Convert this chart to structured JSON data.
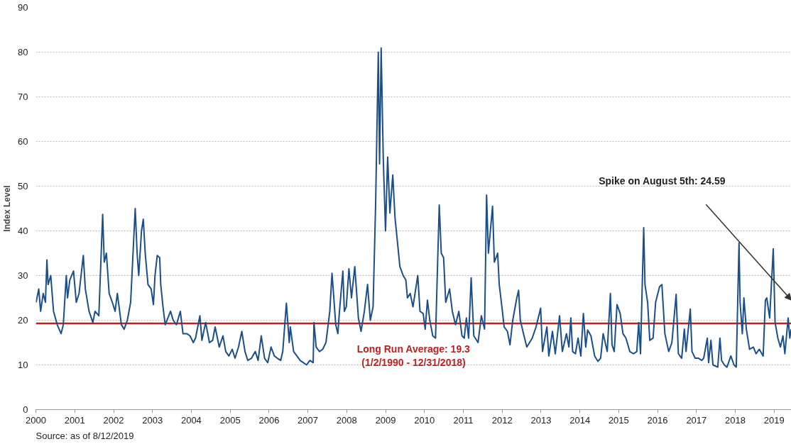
{
  "chart_data": {
    "type": "line",
    "ylabel": "Index Level",
    "xlim": [
      "2000-01-01",
      "2019-06-12"
    ],
    "ylim": [
      0,
      90
    ],
    "xticks": [
      "2000",
      "2001",
      "2002",
      "2003",
      "2004",
      "2005",
      "2006",
      "2007",
      "2008",
      "2009",
      "2010",
      "2011",
      "2012",
      "2013",
      "2014",
      "2015",
      "2016",
      "2017",
      "2018",
      "2019"
    ],
    "yticks": [
      0,
      10,
      20,
      30,
      40,
      50,
      60,
      70,
      80,
      90
    ],
    "grid": "y",
    "marker": "none",
    "line_style": "solid",
    "ref_lines": [
      {
        "axis": "y",
        "value": 19.3,
        "label": "Long Run Average: 19.3\n(1/2/1990 - 12/31/2018)",
        "color": "#c0201f"
      }
    ],
    "annotations": [
      "Spike on August 5th: 24.59",
      "Source: as of 8/12/2019"
    ],
    "series": [
      {
        "color": "#1b4f8a",
        "x": [
          "2000-01-03",
          "2000-01-28",
          "2000-02-15",
          "2000-03-10",
          "2000-03-31",
          "2000-04-14",
          "2000-04-25",
          "2000-05-20",
          "2000-06-15",
          "2000-07-20",
          "2000-08-25",
          "2000-09-15",
          "2000-10-13",
          "2000-10-25",
          "2000-11-15",
          "2000-12-20",
          "2001-01-15",
          "2001-02-10",
          "2001-03-22",
          "2001-04-10",
          "2001-05-15",
          "2001-06-20",
          "2001-07-10",
          "2001-08-15",
          "2001-09-20",
          "2001-10-05",
          "2001-10-25",
          "2001-11-20",
          "2001-12-20",
          "2002-01-15",
          "2002-02-05",
          "2002-03-15",
          "2002-04-10",
          "2002-05-10",
          "2002-06-10",
          "2002-07-23",
          "2002-08-10",
          "2002-08-25",
          "2002-09-20",
          "2002-10-07",
          "2002-10-25",
          "2002-11-20",
          "2002-12-20",
          "2003-01-10",
          "2003-01-25",
          "2003-02-15",
          "2003-03-10",
          "2003-03-20",
          "2003-04-10",
          "2003-05-01",
          "2003-06-20",
          "2003-07-15",
          "2003-08-15",
          "2003-09-20",
          "2003-10-15",
          "2003-11-20",
          "2003-12-20",
          "2004-01-20",
          "2004-02-10",
          "2004-03-22",
          "2004-04-10",
          "2004-05-15",
          "2004-06-20",
          "2004-07-20",
          "2004-08-12",
          "2004-09-20",
          "2004-10-25",
          "2004-11-20",
          "2004-12-20",
          "2005-01-20",
          "2005-02-15",
          "2005-03-20",
          "2005-04-20",
          "2005-05-20",
          "2005-06-15",
          "2005-07-20",
          "2005-08-25",
          "2005-09-20",
          "2005-10-20",
          "2005-11-20",
          "2005-12-20",
          "2006-01-20",
          "2006-02-20",
          "2006-03-20",
          "2006-04-20",
          "2006-05-10",
          "2006-06-13",
          "2006-07-10",
          "2006-07-20",
          "2006-08-20",
          "2006-09-20",
          "2006-10-20",
          "2006-11-20",
          "2006-12-20",
          "2007-01-20",
          "2007-02-20",
          "2007-02-27",
          "2007-03-20",
          "2007-04-20",
          "2007-05-20",
          "2007-06-20",
          "2007-07-26",
          "2007-08-16",
          "2007-09-05",
          "2007-09-20",
          "2007-10-10",
          "2007-10-25",
          "2007-11-26",
          "2007-12-10",
          "2007-12-28",
          "2008-01-22",
          "2008-02-15",
          "2008-03-17",
          "2008-04-20",
          "2008-05-15",
          "2008-06-15",
          "2008-07-15",
          "2008-08-10",
          "2008-09-05",
          "2008-09-29",
          "2008-10-24",
          "2008-11-05",
          "2008-11-20",
          "2008-12-10",
          "2008-12-31",
          "2009-01-20",
          "2009-02-10",
          "2009-03-09",
          "2009-03-30",
          "2009-04-20",
          "2009-05-15",
          "2009-06-15",
          "2009-07-10",
          "2009-07-25",
          "2009-08-20",
          "2009-09-15",
          "2009-10-30",
          "2009-11-20",
          "2009-12-20",
          "2010-01-08",
          "2010-01-29",
          "2010-02-20",
          "2010-03-20",
          "2010-04-15",
          "2010-05-20",
          "2010-06-08",
          "2010-06-30",
          "2010-07-20",
          "2010-08-25",
          "2010-09-20",
          "2010-10-20",
          "2010-11-20",
          "2010-12-20",
          "2011-01-10",
          "2011-01-30",
          "2011-02-20",
          "2011-03-16",
          "2011-04-10",
          "2011-05-20",
          "2011-06-20",
          "2011-07-20",
          "2011-08-08",
          "2011-08-25",
          "2011-09-20",
          "2011-10-03",
          "2011-10-20",
          "2011-11-20",
          "2011-12-05",
          "2011-12-30",
          "2012-01-20",
          "2012-02-20",
          "2012-03-15",
          "2012-04-10",
          "2012-05-18",
          "2012-06-04",
          "2012-06-20",
          "2012-07-20",
          "2012-08-20",
          "2012-09-15",
          "2012-10-10",
          "2012-11-15",
          "2012-12-28",
          "2013-01-15",
          "2013-02-25",
          "2013-03-15",
          "2013-04-18",
          "2013-05-15",
          "2013-06-24",
          "2013-07-20",
          "2013-08-28",
          "2013-09-20",
          "2013-10-08",
          "2013-10-25",
          "2013-11-20",
          "2013-12-15",
          "2014-01-10",
          "2014-02-03",
          "2014-02-25",
          "2014-03-15",
          "2014-04-15",
          "2014-05-20",
          "2014-06-20",
          "2014-07-15",
          "2014-08-08",
          "2014-09-15",
          "2014-10-15",
          "2014-10-30",
          "2014-11-20",
          "2014-12-16",
          "2015-01-15",
          "2015-02-10",
          "2015-03-10",
          "2015-04-15",
          "2015-05-20",
          "2015-06-20",
          "2015-07-08",
          "2015-07-25",
          "2015-08-24",
          "2015-09-05",
          "2015-09-30",
          "2015-10-20",
          "2015-11-20",
          "2015-12-14",
          "2016-01-20",
          "2016-02-11",
          "2016-03-10",
          "2016-04-15",
          "2016-05-15",
          "2016-06-24",
          "2016-07-15",
          "2016-08-15",
          "2016-09-09",
          "2016-09-25",
          "2016-11-04",
          "2016-11-20",
          "2016-12-20",
          "2017-01-20",
          "2017-02-20",
          "2017-03-10",
          "2017-04-13",
          "2017-04-25",
          "2017-05-17",
          "2017-06-05",
          "2017-07-20",
          "2017-08-10",
          "2017-08-25",
          "2017-09-20",
          "2017-10-15",
          "2017-11-20",
          "2017-12-20",
          "2018-01-10",
          "2018-02-05",
          "2018-02-15",
          "2018-03-08",
          "2018-03-23",
          "2018-04-15",
          "2018-05-15",
          "2018-06-20",
          "2018-07-15",
          "2018-08-15",
          "2018-09-20",
          "2018-10-11",
          "2018-10-24",
          "2018-11-20",
          "2018-12-24",
          "2019-01-10",
          "2019-02-05",
          "2019-03-01",
          "2019-03-25",
          "2019-04-12",
          "2019-05-13",
          "2019-05-28",
          "2019-06-10"
        ],
        "values": [
          24,
          27,
          22,
          26,
          24,
          33.5,
          28,
          30,
          22,
          19,
          17,
          19,
          30,
          25,
          29,
          31,
          24,
          26,
          34.5,
          27,
          22,
          19.5,
          22,
          21,
          43.7,
          33,
          35,
          26,
          24,
          22,
          26,
          19,
          18,
          20,
          24,
          45,
          35,
          30,
          40,
          42.6,
          35,
          28,
          27,
          23.5,
          30,
          34.5,
          34,
          28,
          23,
          19,
          22,
          20,
          19,
          22,
          17,
          17,
          16.5,
          15,
          16,
          21,
          15.5,
          19.5,
          15,
          15.5,
          18.5,
          14,
          16.5,
          13,
          12,
          13.5,
          11.5,
          14,
          17.5,
          13,
          11,
          11.5,
          13,
          11,
          16.5,
          11.5,
          10.5,
          14,
          12,
          11.5,
          11,
          13,
          23.8,
          15,
          18.5,
          13,
          12,
          11,
          10.5,
          10,
          11,
          10.5,
          19.5,
          14,
          13,
          13.5,
          15,
          22,
          30.5,
          24,
          19,
          17,
          22,
          31,
          22,
          23,
          31.5,
          25,
          32,
          20.5,
          17.5,
          22,
          28,
          20,
          23,
          46,
          80,
          55,
          80.9,
          56,
          40,
          56.5,
          44,
          52.5,
          43,
          38,
          32,
          30,
          29,
          25,
          26,
          23,
          30,
          22,
          21.5,
          18,
          24.5,
          20,
          16.5,
          16,
          45.8,
          35,
          34,
          24,
          27,
          22,
          19,
          22,
          16.5,
          16,
          20.5,
          16,
          29.5,
          16.5,
          15,
          21,
          18,
          48,
          35,
          42,
          45.5,
          33,
          35,
          28,
          23,
          18.5,
          17.5,
          14.5,
          20,
          25,
          26.7,
          20,
          17,
          14,
          15,
          16,
          18.5,
          22.7,
          13,
          18.5,
          12,
          17.5,
          12.5,
          21,
          13,
          17,
          14,
          20.5,
          13,
          12.5,
          16,
          12,
          21.5,
          14,
          17.8,
          16.5,
          12,
          10.8,
          11.5,
          17,
          13,
          26,
          14.5,
          13,
          23.5,
          21.5,
          17,
          16,
          13,
          12.5,
          13,
          19.5,
          12.5,
          40.7,
          28,
          24,
          15.5,
          16,
          24,
          27.5,
          28,
          17,
          13,
          15,
          25.8,
          12.5,
          11.5,
          18,
          13,
          22.5,
          13,
          11.5,
          11.5,
          11,
          11.5,
          16,
          10.5,
          15.5,
          10,
          9.5,
          16,
          11,
          10,
          9.5,
          12,
          10,
          9.5,
          37.3,
          24,
          17,
          25,
          18,
          13.5,
          14,
          12.5,
          13.5,
          12,
          24.5,
          25,
          20.5,
          36,
          19.5,
          16,
          14,
          16.5,
          12.5,
          20.5,
          16,
          18
        ]
      }
    ]
  }
}
